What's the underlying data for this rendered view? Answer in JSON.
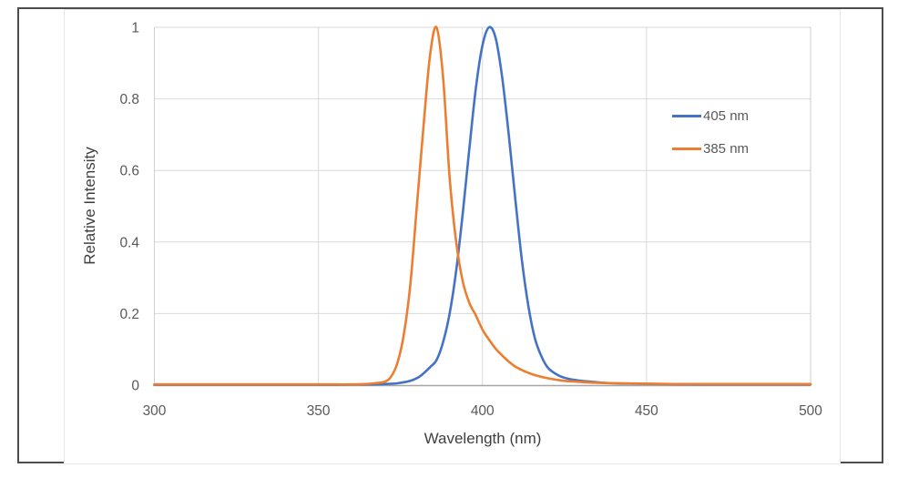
{
  "chart_data": {
    "type": "line",
    "title": "",
    "xlabel": "Wavelength (nm)",
    "ylabel": "Relative Intensity",
    "xlim": [
      300,
      500
    ],
    "ylim": [
      0,
      1
    ],
    "grid": true,
    "legend_position": "inside-upper-right",
    "x_ticks": [
      {
        "v": 300,
        "label": "300"
      },
      {
        "v": 350,
        "label": "350"
      },
      {
        "v": 400,
        "label": "400"
      },
      {
        "v": 450,
        "label": "450"
      },
      {
        "v": 500,
        "label": "500"
      }
    ],
    "y_ticks": [
      {
        "v": 0,
        "label": "0"
      },
      {
        "v": 0.2,
        "label": "0.2"
      },
      {
        "v": 0.4,
        "label": "0.4"
      },
      {
        "v": 0.6,
        "label": "0.6"
      },
      {
        "v": 0.8,
        "label": "0.8"
      },
      {
        "v": 1,
        "label": "1"
      }
    ],
    "colors": {
      "gridline": "#d9d9d9",
      "axis_line": "#a6a6a6",
      "plot_border": "#cccccc",
      "tick_text": "#595959",
      "figure_frame": "#4d4d4d"
    },
    "series": [
      {
        "name": "405 nm",
        "color": "#4472C4",
        "peak_nm": 402,
        "points": [
          [
            300,
            0.001
          ],
          [
            320,
            0.001
          ],
          [
            340,
            0.001
          ],
          [
            355,
            0.001
          ],
          [
            365,
            0.002
          ],
          [
            370,
            0.003
          ],
          [
            374,
            0.005
          ],
          [
            378,
            0.012
          ],
          [
            381,
            0.025
          ],
          [
            384,
            0.05
          ],
          [
            386,
            0.07
          ],
          [
            388,
            0.12
          ],
          [
            390,
            0.2
          ],
          [
            392,
            0.32
          ],
          [
            394,
            0.48
          ],
          [
            396,
            0.66
          ],
          [
            398,
            0.83
          ],
          [
            400,
            0.95
          ],
          [
            402,
            1.0
          ],
          [
            404,
            0.97
          ],
          [
            406,
            0.86
          ],
          [
            408,
            0.7
          ],
          [
            410,
            0.52
          ],
          [
            412,
            0.35
          ],
          [
            414,
            0.22
          ],
          [
            416,
            0.13
          ],
          [
            418,
            0.08
          ],
          [
            420,
            0.048
          ],
          [
            423,
            0.028
          ],
          [
            426,
            0.018
          ],
          [
            430,
            0.012
          ],
          [
            435,
            0.008
          ],
          [
            440,
            0.005
          ],
          [
            447,
            0.004
          ],
          [
            455,
            0.003
          ],
          [
            465,
            0.002
          ],
          [
            480,
            0.002
          ],
          [
            500,
            0.002
          ]
        ]
      },
      {
        "name": "385 nm",
        "color": "#ED7D31",
        "peak_nm": 386,
        "points": [
          [
            300,
            0.002
          ],
          [
            320,
            0.002
          ],
          [
            340,
            0.002
          ],
          [
            352,
            0.002
          ],
          [
            360,
            0.002
          ],
          [
            364,
            0.003
          ],
          [
            367,
            0.005
          ],
          [
            370,
            0.009
          ],
          [
            372,
            0.022
          ],
          [
            374,
            0.06
          ],
          [
            376,
            0.14
          ],
          [
            378,
            0.28
          ],
          [
            380,
            0.5
          ],
          [
            382,
            0.72
          ],
          [
            384,
            0.92
          ],
          [
            386,
            1.0
          ],
          [
            388,
            0.86
          ],
          [
            390,
            0.58
          ],
          [
            392,
            0.4
          ],
          [
            394,
            0.29
          ],
          [
            396,
            0.23
          ],
          [
            398,
            0.195
          ],
          [
            400,
            0.155
          ],
          [
            402,
            0.127
          ],
          [
            404,
            0.102
          ],
          [
            406,
            0.083
          ],
          [
            408,
            0.066
          ],
          [
            410,
            0.052
          ],
          [
            413,
            0.038
          ],
          [
            416,
            0.028
          ],
          [
            420,
            0.019
          ],
          [
            425,
            0.012
          ],
          [
            430,
            0.009
          ],
          [
            436,
            0.006
          ],
          [
            443,
            0.005
          ],
          [
            450,
            0.004
          ],
          [
            460,
            0.003
          ],
          [
            475,
            0.003
          ],
          [
            500,
            0.003
          ]
        ]
      }
    ]
  }
}
